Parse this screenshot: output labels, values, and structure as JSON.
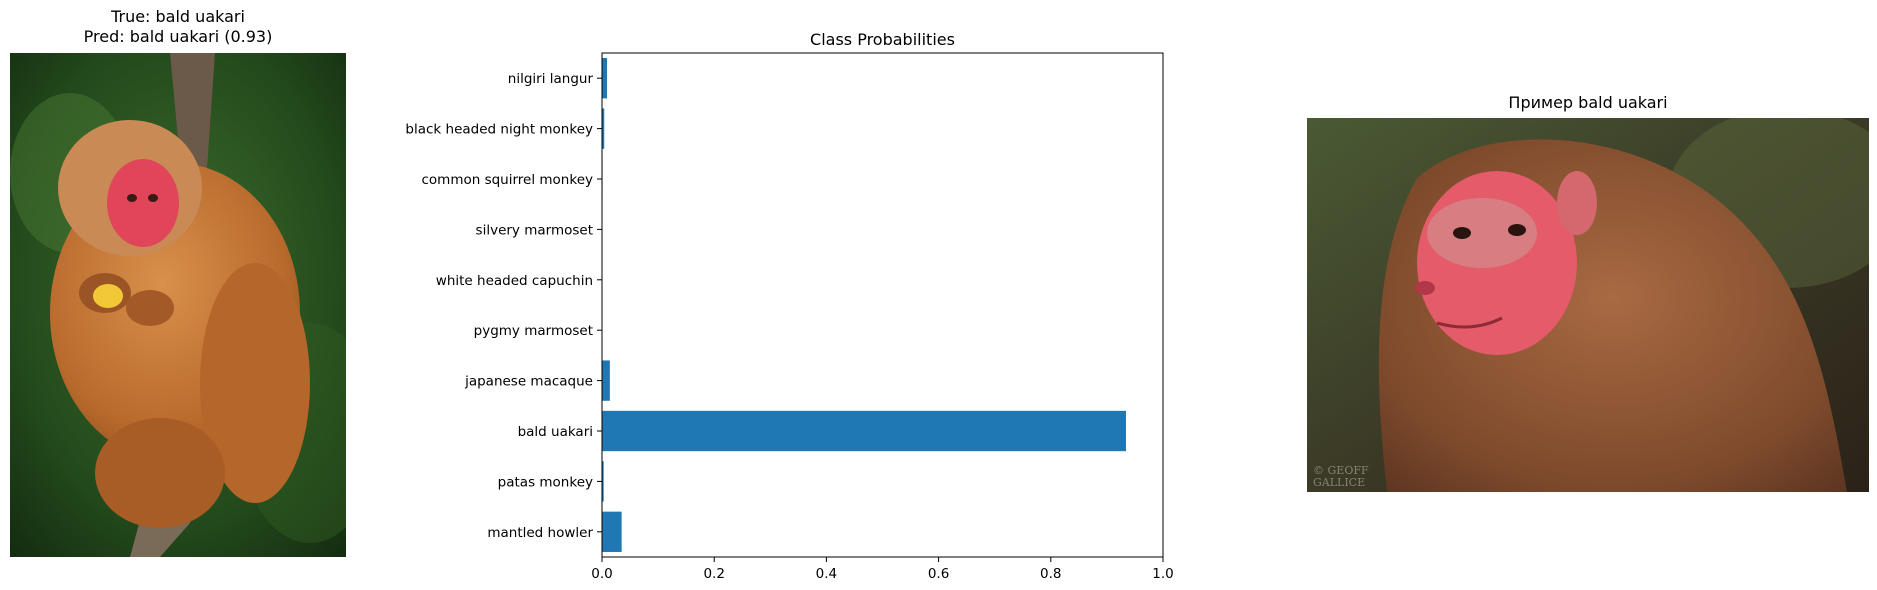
{
  "left_panel": {
    "title_line1": "True: bald uakari",
    "title_line2": "Pred: bald uakari (0.93)"
  },
  "right_panel": {
    "title": "Пример bald uakari",
    "watermark_line1": "© GEOFF",
    "watermark_line2": "GALLICE"
  },
  "chart_data": {
    "type": "bar",
    "orientation": "horizontal",
    "title": "Class Probabilities",
    "xlabel": "",
    "ylabel": "",
    "xlim": [
      0,
      1.0
    ],
    "xticks": [
      "0.0",
      "0.2",
      "0.4",
      "0.6",
      "0.8",
      "1.0"
    ],
    "categories": [
      "mantled howler",
      "patas monkey",
      "bald uakari",
      "japanese macaque",
      "pygmy marmoset",
      "white headed capuchin",
      "silvery marmoset",
      "common squirrel monkey",
      "black headed night monkey",
      "nilgiri langur"
    ],
    "values": [
      0.035,
      0.003,
      0.934,
      0.014,
      0.0005,
      0.0005,
      0.0005,
      0.001,
      0.004,
      0.009
    ],
    "bar_color": "#1f77b4"
  }
}
